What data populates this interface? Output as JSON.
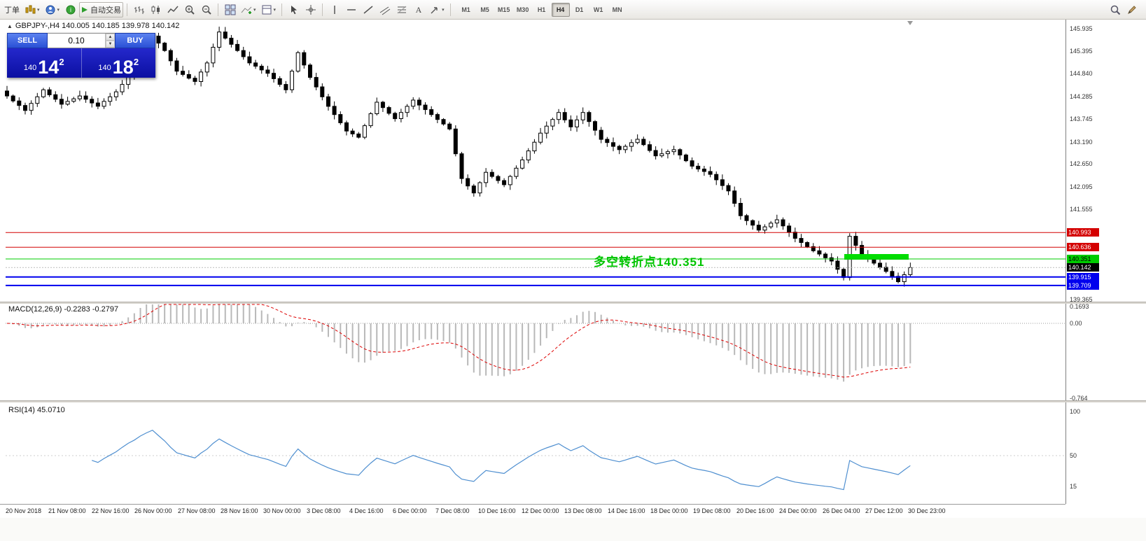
{
  "toolbar": {
    "new_order": "丁单",
    "auto_trading": "自动交易",
    "timeframes": [
      "M1",
      "M5",
      "M15",
      "M30",
      "H1",
      "H4",
      "D1",
      "W1",
      "MN"
    ],
    "active_timeframe": "H4"
  },
  "chart": {
    "ohlc_info": "GBPJPY-,H4  140.005 140.185 139.978 140.142",
    "trade_panel": {
      "sell": "SELL",
      "buy": "BUY",
      "lot": "0.10",
      "sell_price": {
        "prefix": "140",
        "big": "14",
        "sup": "2"
      },
      "buy_price": {
        "prefix": "140",
        "big": "18",
        "sup": "2"
      }
    },
    "annotation": "多空转折点140.351",
    "y_labels": [
      "145.935",
      "145.395",
      "144.840",
      "144.285",
      "143.745",
      "143.190",
      "142.650",
      "142.095",
      "141.555",
      "139.365"
    ],
    "levels": [
      {
        "price": 140.993,
        "label": "140.993",
        "color": "#d40000",
        "label_text": "#ffffff",
        "type": "resistance"
      },
      {
        "price": 140.636,
        "label": "140.636",
        "color": "#d40000",
        "label_text": "#ffffff",
        "type": "resistance"
      },
      {
        "price": 140.351,
        "label": "140.351",
        "color": "#00cc00",
        "label_text": "#000000",
        "type": "pivot"
      },
      {
        "price": 140.142,
        "label": "140.142",
        "color": "#000000",
        "label_text": "#ffffff",
        "type": "current-price"
      },
      {
        "price": 139.915,
        "label": "139.915",
        "color": "#0000ee",
        "label_text": "#ffffff",
        "type": "support"
      },
      {
        "price": 139.709,
        "label": "139.709",
        "color": "#0000ee",
        "label_text": "#ffffff",
        "type": "support"
      }
    ]
  },
  "macd_panel": {
    "label": "MACD(12,26,9) -0.2283 -0.2797",
    "scale": [
      "0.1693",
      "0.00",
      "-0.764"
    ]
  },
  "rsi_panel": {
    "label": "RSI(14) 45.0710",
    "scale": [
      "100",
      "50",
      "15"
    ]
  },
  "x_labels": [
    "20 Nov 2018",
    "21 Nov 08:00",
    "22 Nov 16:00",
    "26 Nov 00:00",
    "27 Nov 08:00",
    "28 Nov 16:00",
    "30 Nov 00:00",
    "3 Dec 08:00",
    "4 Dec 16:00",
    "6 Dec 00:00",
    "7 Dec 08:00",
    "10 Dec 16:00",
    "12 Dec 00:00",
    "13 Dec 08:00",
    "14 Dec 16:00",
    "18 Dec 00:00",
    "19 Dec 08:00",
    "20 Dec 16:00",
    "24 Dec 00:00",
    "26 Dec 04:00",
    "27 Dec 12:00",
    "30 Dec 23:00"
  ],
  "colors": {
    "bull": "#ffffff",
    "bear": "#000000",
    "macd_histogram": "#b8b8b8",
    "macd_signal": "#dd0000",
    "rsi_line": "#4f8fd0",
    "annotation_green": "#00c400",
    "pivot_bar": "#00dd00",
    "button_blue": "#2a50d6",
    "panel_blue": "#0b0fa2"
  },
  "chart_data": {
    "type": "candlestick",
    "symbol": "GBPJPY-",
    "timeframe": "H4",
    "last_ohlc": {
      "open": 140.005,
      "high": 140.185,
      "low": 139.978,
      "close": 140.142
    },
    "y_range": [
      139.3,
      146.15
    ],
    "open_first": 144.42,
    "closes": [
      144.3,
      144.18,
      144.07,
      143.95,
      144.12,
      144.28,
      144.45,
      144.33,
      144.22,
      144.1,
      144.17,
      144.23,
      144.3,
      144.22,
      144.13,
      144.05,
      144.17,
      144.28,
      144.4,
      144.58,
      144.77,
      144.95,
      145.22,
      145.48,
      145.75,
      145.58,
      145.4,
      145.15,
      144.9,
      144.82,
      144.73,
      144.65,
      144.88,
      145.1,
      145.48,
      145.85,
      145.7,
      145.55,
      145.4,
      145.25,
      145.1,
      145.02,
      144.93,
      144.85,
      144.72,
      144.58,
      144.45,
      144.9,
      145.35,
      145.05,
      144.75,
      144.52,
      144.28,
      144.05,
      143.85,
      143.65,
      143.45,
      143.38,
      143.3,
      143.58,
      143.87,
      144.15,
      144.02,
      143.88,
      143.75,
      143.9,
      144.05,
      144.2,
      144.08,
      143.97,
      143.85,
      143.73,
      143.62,
      143.5,
      142.9,
      142.3,
      142.12,
      141.95,
      142.2,
      142.45,
      142.35,
      142.25,
      142.15,
      142.35,
      142.55,
      142.75,
      142.97,
      143.18,
      143.4,
      143.57,
      143.73,
      143.9,
      143.72,
      143.55,
      143.72,
      143.9,
      143.68,
      143.47,
      143.25,
      143.17,
      143.08,
      143.0,
      143.08,
      143.17,
      143.25,
      143.12,
      142.98,
      142.85,
      142.9,
      142.95,
      143.0,
      142.87,
      142.73,
      142.6,
      142.53,
      142.47,
      142.4,
      142.27,
      142.13,
      142.0,
      141.7,
      141.4,
      141.28,
      141.17,
      141.05,
      141.13,
      141.22,
      141.3,
      141.15,
      141.0,
      140.85,
      140.75,
      140.65,
      140.55,
      140.47,
      140.38,
      140.3,
      140.1,
      139.9,
      140.9,
      140.68,
      140.45,
      140.35,
      140.25,
      140.15,
      140.05,
      139.93,
      139.8,
      139.97,
      140.142
    ],
    "horizontal_levels": {
      "resistance": [
        140.993,
        140.636
      ],
      "pivot": 140.351,
      "bid": 140.142,
      "support": [
        139.915,
        139.709
      ]
    },
    "indicators": [
      {
        "name": "MACD",
        "params": [
          12,
          26,
          9
        ],
        "values_shown": [
          -0.2283,
          -0.2797
        ],
        "axis": [
          0.1693,
          0.0,
          -0.764
        ]
      },
      {
        "name": "RSI",
        "params": [
          14
        ],
        "value_shown": 45.071,
        "axis": [
          100,
          50,
          15
        ]
      }
    ]
  }
}
